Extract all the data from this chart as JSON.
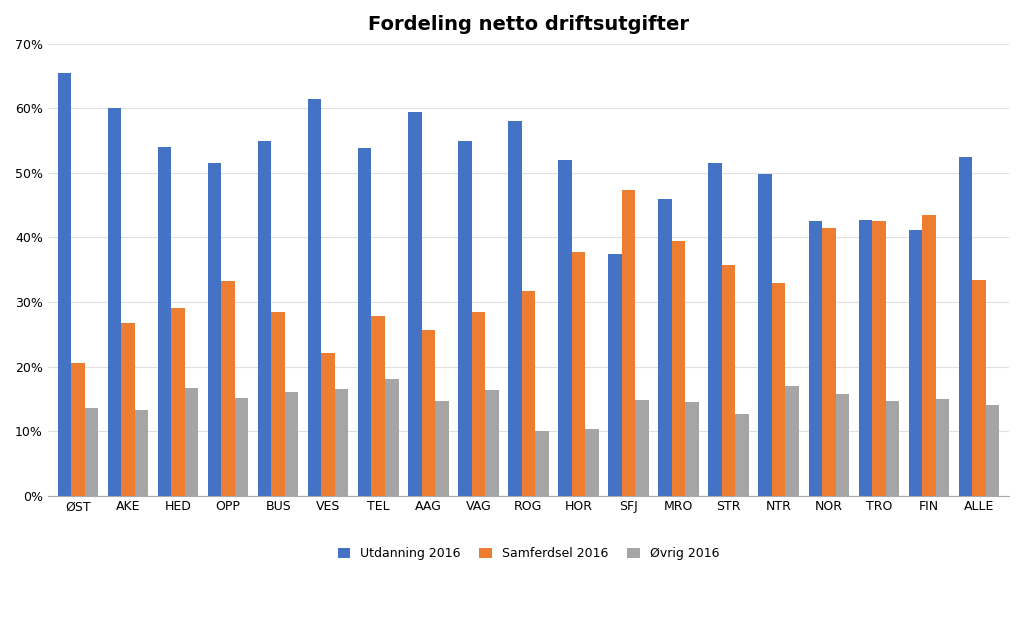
{
  "title": "Fordeling netto driftsutgifter",
  "categories": [
    "ØST",
    "AKE",
    "HED",
    "OPP",
    "BUS",
    "VES",
    "TEL",
    "AAG",
    "VAG",
    "ROG",
    "HOR",
    "SFJ",
    "MRO",
    "STR",
    "NTR",
    "NOR",
    "TRO",
    "FIN",
    "ALLE"
  ],
  "utdanning": [
    0.655,
    0.6,
    0.54,
    0.515,
    0.55,
    0.615,
    0.538,
    0.595,
    0.55,
    0.58,
    0.52,
    0.375,
    0.46,
    0.515,
    0.498,
    0.425,
    0.427,
    0.412,
    0.525
  ],
  "samferdsel": [
    0.205,
    0.267,
    0.29,
    0.333,
    0.285,
    0.221,
    0.279,
    0.257,
    0.284,
    0.317,
    0.378,
    0.473,
    0.394,
    0.357,
    0.33,
    0.415,
    0.425,
    0.435,
    0.334
  ],
  "ovrig": [
    0.136,
    0.133,
    0.166,
    0.152,
    0.16,
    0.165,
    0.18,
    0.146,
    0.163,
    0.1,
    0.103,
    0.148,
    0.145,
    0.127,
    0.17,
    0.158,
    0.146,
    0.15,
    0.141
  ],
  "color_utdanning": "#4472C4",
  "color_samferdsel": "#ED7D31",
  "color_ovrig": "#A5A5A5",
  "legend_labels": [
    "Utdanning 2016",
    "Samferdsel 2016",
    "Øvrig 2016"
  ],
  "ylim": [
    0,
    0.7
  ],
  "yticks": [
    0.0,
    0.1,
    0.2,
    0.3,
    0.4,
    0.5,
    0.6,
    0.7
  ],
  "background_color": "#FFFFFF",
  "title_fontsize": 14,
  "tick_fontsize": 9,
  "legend_fontsize": 9
}
